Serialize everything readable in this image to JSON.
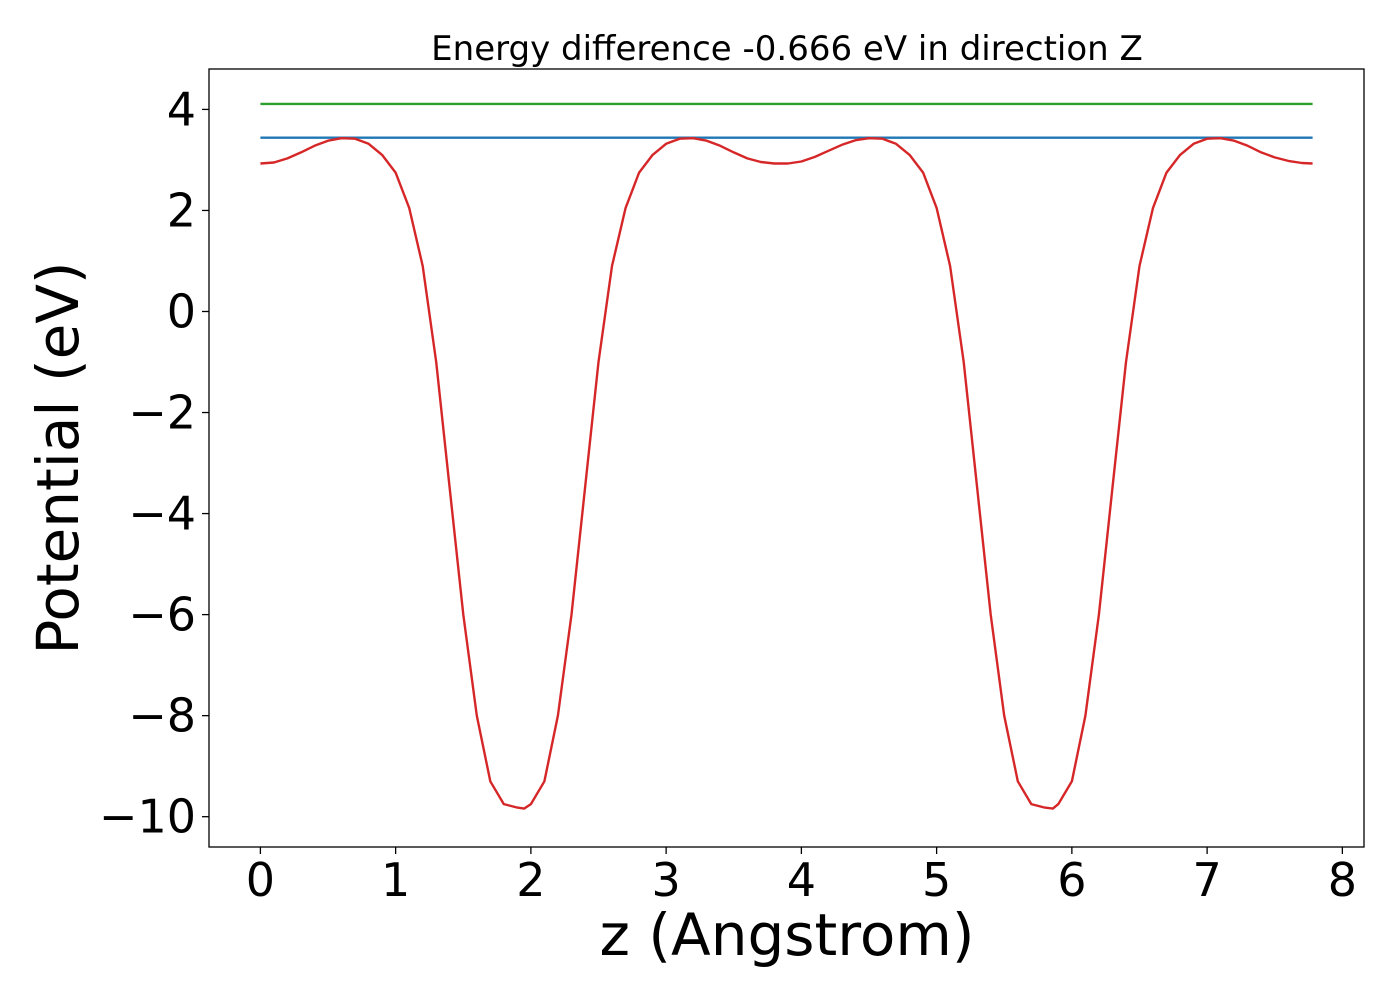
{
  "chart_data": {
    "type": "line",
    "title": "Energy difference -0.666 eV in direction Z",
    "xlabel": "z (Angstrom)",
    "ylabel": "Potential (eV)",
    "xlim": [
      -0.38,
      8.16
    ],
    "ylim": [
      -10.6,
      4.8
    ],
    "xticks": [
      0,
      1,
      2,
      3,
      4,
      5,
      6,
      7,
      8
    ],
    "xtick_labels": [
      "0",
      "1",
      "2",
      "3",
      "4",
      "5",
      "6",
      "7",
      "8"
    ],
    "yticks": [
      4,
      2,
      0,
      -2,
      -4,
      -6,
      -8,
      -10
    ],
    "ytick_labels": [
      "4",
      "2",
      "0",
      "−2",
      "−4",
      "−6",
      "−8",
      "−10"
    ],
    "grid": false,
    "legend": "none",
    "series": [
      {
        "color": "#2ca02c",
        "x": [
          0,
          7.78
        ],
        "y": [
          4.11,
          4.11
        ]
      },
      {
        "color": "#1f77b4",
        "x": [
          0,
          7.78
        ],
        "y": [
          3.44,
          3.44
        ]
      },
      {
        "color": "#d62728",
        "x": [
          0,
          0.1,
          0.2,
          0.3,
          0.4,
          0.5,
          0.6,
          0.7,
          0.8,
          0.9,
          1.0,
          1.1,
          1.2,
          1.3,
          1.4,
          1.5,
          1.6,
          1.7,
          1.8,
          1.9,
          1.95,
          2.0,
          2.1,
          2.2,
          2.3,
          2.4,
          2.5,
          2.6,
          2.7,
          2.8,
          2.9,
          3.0,
          3.1,
          3.2,
          3.3,
          3.4,
          3.5,
          3.6,
          3.7,
          3.8,
          3.9,
          4.0,
          4.1,
          4.2,
          4.3,
          4.4,
          4.5,
          4.6,
          4.7,
          4.8,
          4.9,
          5.0,
          5.1,
          5.2,
          5.3,
          5.4,
          5.5,
          5.6,
          5.7,
          5.8,
          5.86,
          5.9,
          6.0,
          6.1,
          6.2,
          6.3,
          6.4,
          6.5,
          6.6,
          6.7,
          6.8,
          6.9,
          7.0,
          7.1,
          7.2,
          7.3,
          7.4,
          7.5,
          7.6,
          7.7,
          7.78
        ],
        "y": [
          2.93,
          2.95,
          3.03,
          3.15,
          3.28,
          3.38,
          3.43,
          3.42,
          3.32,
          3.1,
          2.75,
          2.05,
          0.9,
          -1.0,
          -3.5,
          -6.0,
          -8.0,
          -9.3,
          -9.75,
          -9.82,
          -9.84,
          -9.75,
          -9.3,
          -8.0,
          -6.0,
          -3.5,
          -1.0,
          0.9,
          2.05,
          2.75,
          3.1,
          3.32,
          3.42,
          3.43,
          3.38,
          3.28,
          3.15,
          3.03,
          2.96,
          2.93,
          2.93,
          2.97,
          3.06,
          3.18,
          3.3,
          3.39,
          3.43,
          3.42,
          3.32,
          3.1,
          2.75,
          2.05,
          0.9,
          -1.0,
          -3.5,
          -6.0,
          -8.0,
          -9.3,
          -9.75,
          -9.82,
          -9.84,
          -9.75,
          -9.3,
          -8.0,
          -6.0,
          -3.5,
          -1.0,
          0.9,
          2.05,
          2.75,
          3.1,
          3.32,
          3.42,
          3.43,
          3.38,
          3.28,
          3.15,
          3.05,
          2.98,
          2.94,
          2.93
        ]
      }
    ]
  }
}
